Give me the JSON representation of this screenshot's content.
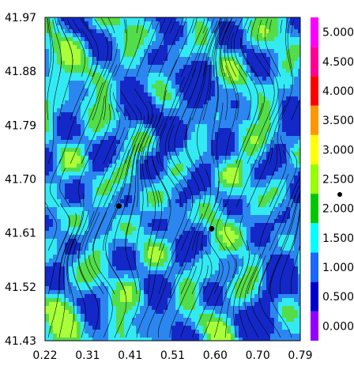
{
  "chart_data": {
    "type": "heatmap",
    "title": "",
    "xlabel": "",
    "ylabel": "",
    "xlim": [
      0.22,
      0.79
    ],
    "ylim": [
      41.43,
      41.97
    ],
    "x_ticks": [
      "0.22",
      "0.31",
      "0.41",
      "0.51",
      "0.60",
      "0.70",
      "0.79"
    ],
    "y_ticks": [
      "41.97",
      "41.88",
      "41.79",
      "41.70",
      "41.61",
      "41.52",
      "41.43"
    ],
    "colorbar": {
      "labels": [
        "0.000",
        "0.500",
        "1.000",
        "1.500",
        "2.000",
        "2.500",
        "3.000",
        "3.500",
        "4.000",
        "4.500",
        "5.000"
      ],
      "colors": [
        "#9400ff",
        "#0000cc",
        "#1a66ff",
        "#00ffff",
        "#00c800",
        "#96ff00",
        "#ffff00",
        "#ff9600",
        "#ff0000",
        "#ff0096",
        "#ff00ff"
      ]
    },
    "level_colors": [
      "#9400ff",
      "#1428c8",
      "#2c86f0",
      "#33eaf3",
      "#53dd4a",
      "#a8ff3a"
    ],
    "markers": [
      {
        "x": 0.385,
        "y": 41.655
      },
      {
        "x": 0.592,
        "y": 41.617
      }
    ],
    "streamlines": true
  }
}
